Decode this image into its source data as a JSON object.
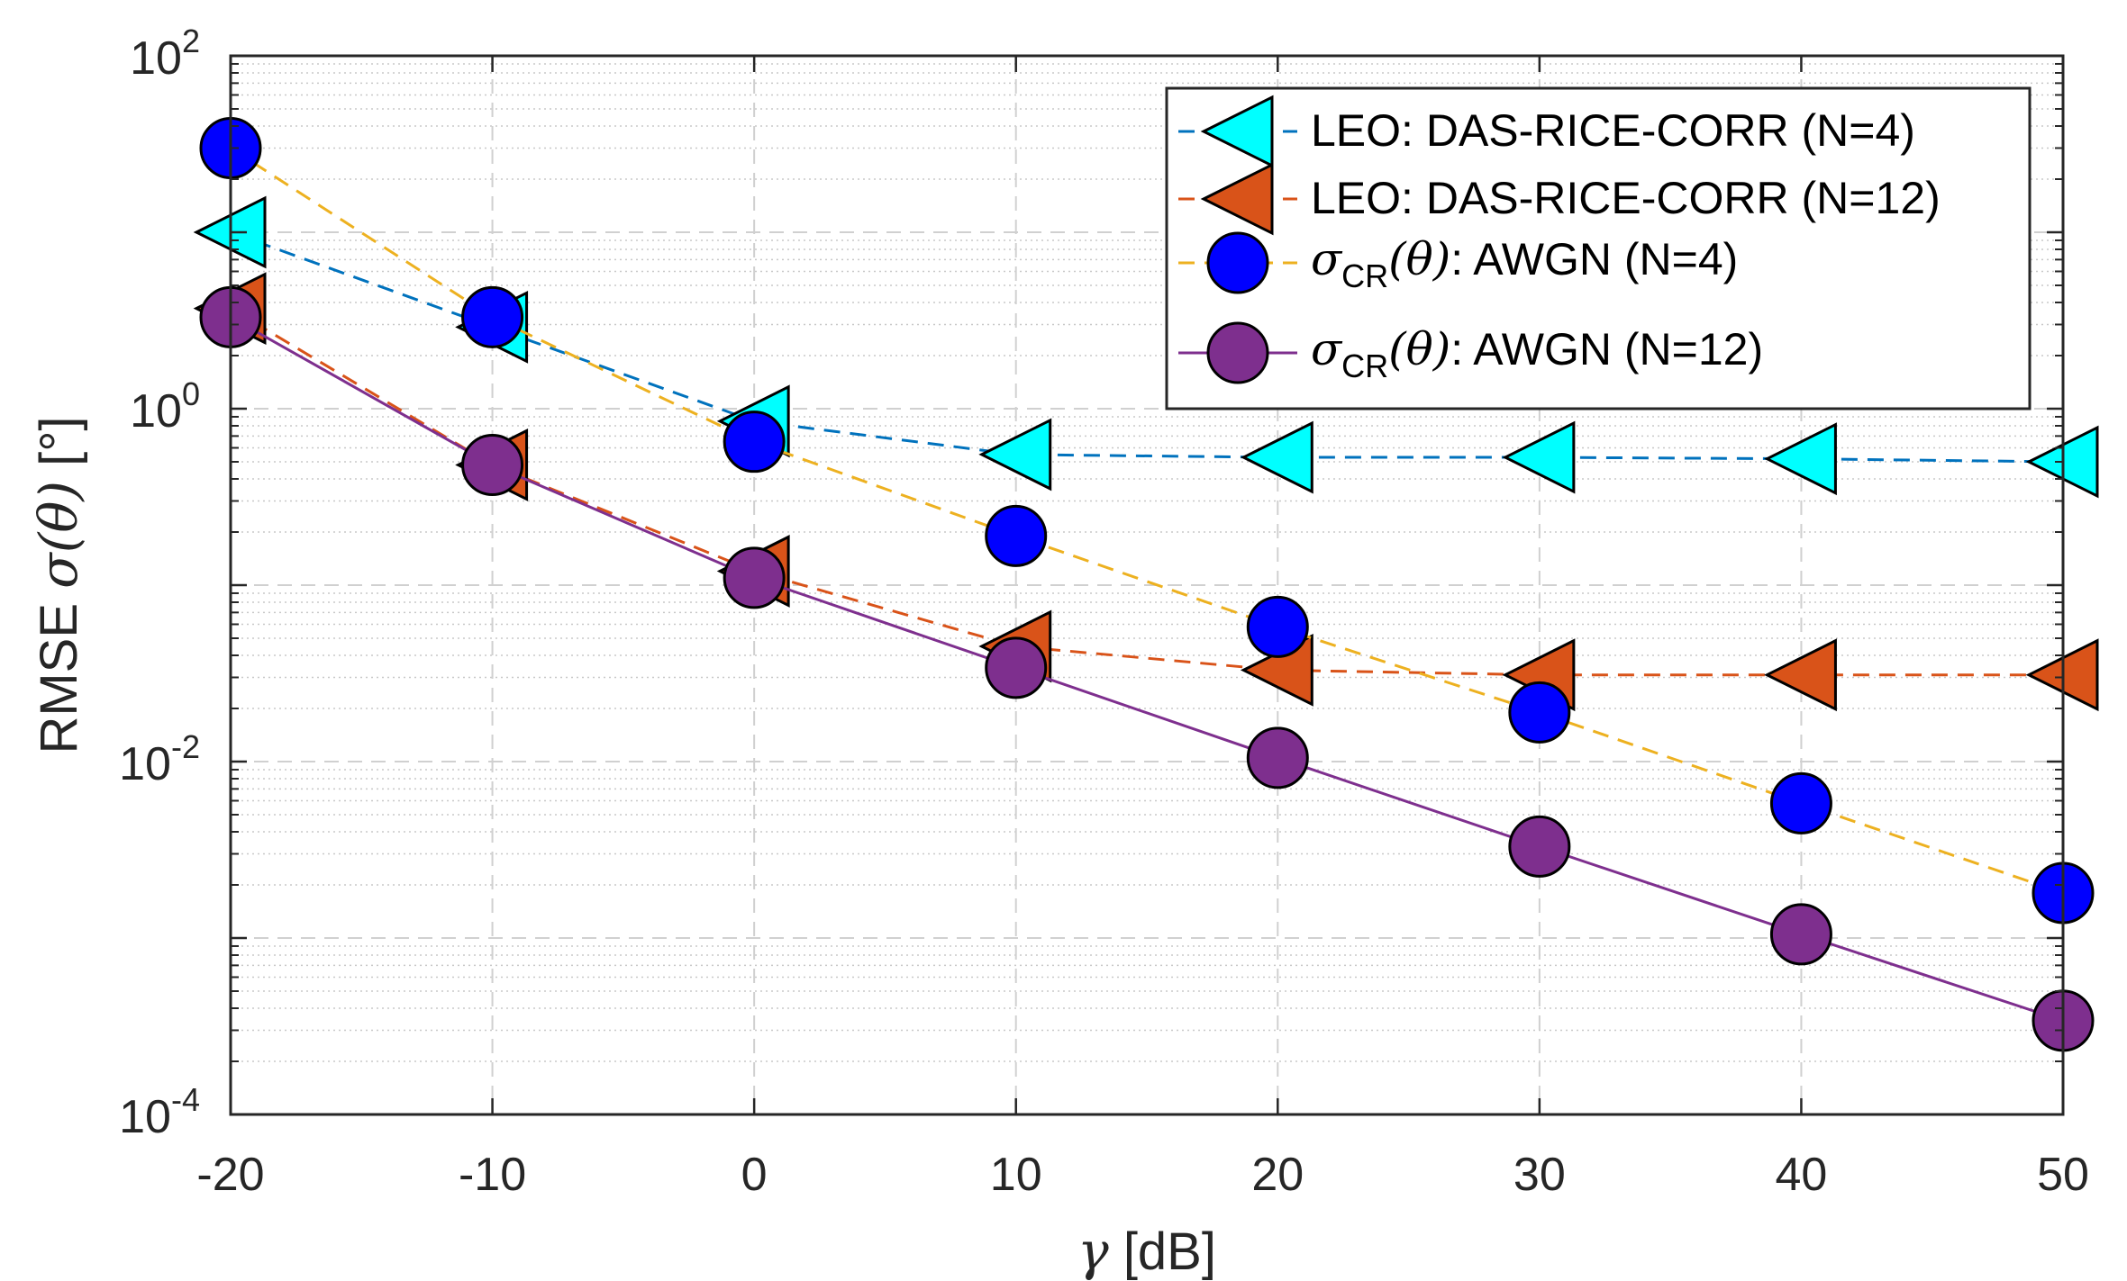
{
  "chart_data": {
    "type": "line",
    "x": [
      -20,
      -10,
      0,
      10,
      20,
      30,
      40,
      50
    ],
    "xlim": [
      -20,
      50
    ],
    "xticks": [
      "-20",
      "-10",
      "0",
      "10",
      "20",
      "30",
      "40",
      "50"
    ],
    "xlabel_symbol": "γ",
    "xlabel_unit": "[dB]",
    "ylabel_prefix": "RMSE",
    "ylabel_math": "σ(θ)",
    "ylabel_unit": "[°]",
    "yscale": "log",
    "ylim": [
      0.0001,
      100
    ],
    "yticks": [
      {
        "base": "10",
        "exp": "-4"
      },
      {
        "base": "10",
        "exp": "-2"
      },
      {
        "base": "10",
        "exp": "0"
      },
      {
        "base": "10",
        "exp": "2"
      }
    ],
    "grid": true,
    "legend_position": "top-right",
    "series": [
      {
        "name": "LEO: DAS-RICE-CORR (N=4)",
        "legend": {
          "text": "LEO: DAS-RICE-CORR (N=4)"
        },
        "line_color": "#0072BD",
        "line_style": "dashed",
        "marker": "triangle-left",
        "marker_fill": "#00FFFF",
        "values": [
          10,
          2.9,
          0.85,
          0.55,
          0.53,
          0.53,
          0.52,
          0.5
        ]
      },
      {
        "name": "LEO: DAS-RICE-CORR (N=12)",
        "legend": {
          "text": "LEO: DAS-RICE-CORR (N=12)"
        },
        "line_color": "#D95319",
        "line_style": "dashed",
        "marker": "triangle-left",
        "marker_fill": "#D95319",
        "values": [
          3.7,
          0.48,
          0.12,
          0.045,
          0.033,
          0.031,
          0.031,
          0.031
        ]
      },
      {
        "name": "σCR(θ): AWGN (N=4)",
        "legend": {
          "sigma": "σ",
          "sub": "CR",
          "arg": "(θ)",
          "text": ": AWGN (N=4)"
        },
        "line_color": "#EDB120",
        "line_style": "dashed",
        "marker": "circle",
        "marker_fill": "#0000FF",
        "values": [
          30,
          3.3,
          0.65,
          0.19,
          0.058,
          0.019,
          0.0058,
          0.0018
        ]
      },
      {
        "name": "σCR(θ): AWGN (N=12)",
        "legend": {
          "sigma": "σ",
          "sub": "CR",
          "arg": "(θ)",
          "text": ": AWGN (N=12)"
        },
        "line_color": "#7E2F8E",
        "line_style": "solid",
        "marker": "circle",
        "marker_fill": "#7E2F8E",
        "values": [
          3.3,
          0.48,
          0.11,
          0.034,
          0.0105,
          0.0033,
          0.00105,
          0.00034
        ]
      }
    ]
  }
}
